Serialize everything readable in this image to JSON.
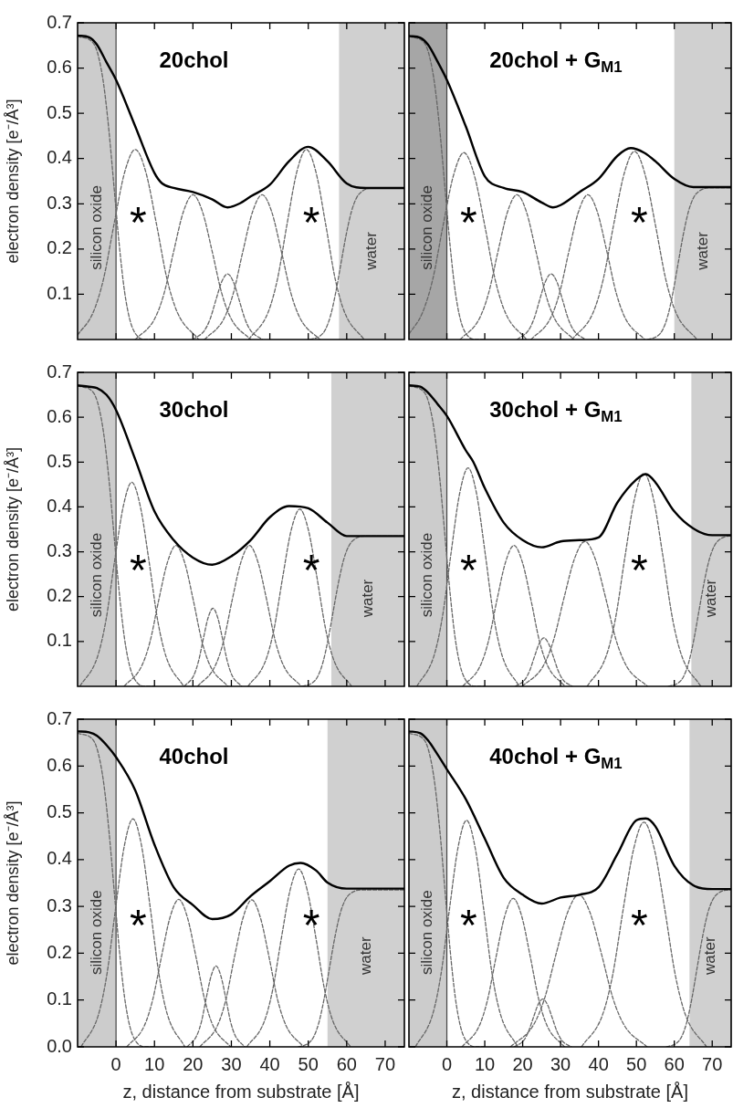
{
  "chart_data": [
    {
      "type": "line",
      "title": "20chol",
      "ylabel": "electron density [e⁻/Å³]",
      "xlim": [
        -10,
        75
      ],
      "ylim": [
        0,
        0.7
      ],
      "xticks": [
        0,
        10,
        20,
        30,
        40,
        50,
        60,
        70
      ],
      "yticks": [
        0.1,
        0.2,
        0.3,
        0.4,
        0.5,
        0.6,
        0.7
      ],
      "tick_labels": "y",
      "bands": [
        {
          "axis": "x",
          "from": -10,
          "to": 0,
          "label": "silicon oxide",
          "color": "#cccccc"
        },
        {
          "axis": "x",
          "from": 58,
          "to": 75,
          "label": "water",
          "color": "#d0d0d0"
        }
      ],
      "ref_lines": [
        {
          "axis": "x",
          "value": 0,
          "color": "#444444"
        }
      ],
      "annotations": [
        "*",
        "*"
      ],
      "series": [
        {
          "color": "#000000",
          "line_style": "solid",
          "x": [
            -10,
            -7,
            -5,
            -2.5,
            0,
            5,
            10,
            12,
            15,
            20,
            25,
            29,
            32,
            35,
            40,
            45,
            50,
            55,
            60,
            65,
            75
          ],
          "values": [
            0.672,
            0.668,
            0.652,
            0.613,
            0.574,
            0.471,
            0.368,
            0.345,
            0.335,
            0.326,
            0.31,
            0.292,
            0.3,
            0.316,
            0.342,
            0.394,
            0.426,
            0.394,
            0.345,
            0.335,
            0.335
          ]
        },
        {
          "color": "#666666",
          "line_style": "dashed",
          "x": [
            -10,
            -5.9,
            -4.55,
            -3.2,
            -1.85,
            -0.5,
            0.85,
            2.2,
            3.55,
            4.9,
            7.6,
            10
          ],
          "values": [
            0.67,
            0.655,
            0.625,
            0.563,
            0.462,
            0.335,
            0.208,
            0.107,
            0.045,
            0.015,
            0,
            0
          ]
        },
        {
          "color": "#666666",
          "line_style": "dashed",
          "x": [
            -10,
            -6,
            -3.25,
            -0.5,
            2.25,
            5,
            7.75,
            10.5,
            13.25,
            16,
            21.5
          ],
          "values": [
            0.01,
            0.059,
            0.134,
            0.256,
            0.37,
            0.42,
            0.37,
            0.256,
            0.134,
            0.059,
            0
          ]
        },
        {
          "color": "#666666",
          "line_style": "dashed",
          "x": [
            5,
            10,
            12.5,
            15,
            17.5,
            20,
            22.5,
            25,
            27.5,
            30,
            35
          ],
          "values": [
            0,
            0.045,
            0.102,
            0.195,
            0.282,
            0.32,
            0.282,
            0.195,
            0.102,
            0.045,
            0
          ]
        },
        {
          "color": "#666666",
          "line_style": "dashed",
          "x": [
            20,
            23,
            24.5,
            26,
            27.5,
            29,
            30.5,
            32,
            33.5,
            35,
            38
          ],
          "values": [
            0,
            0.02,
            0.046,
            0.088,
            0.128,
            0.145,
            0.128,
            0.088,
            0.046,
            0.02,
            0
          ]
        },
        {
          "color": "#666666",
          "line_style": "dashed",
          "x": [
            23,
            28,
            30.5,
            33,
            35.5,
            38,
            40.5,
            43,
            45.5,
            48,
            53
          ],
          "values": [
            0,
            0.045,
            0.102,
            0.195,
            0.282,
            0.32,
            0.282,
            0.195,
            0.102,
            0.045,
            0
          ]
        },
        {
          "color": "#666666",
          "line_style": "dashed",
          "x": [
            34.5,
            39.5,
            42,
            44.5,
            47,
            49.5,
            52,
            54.5,
            57,
            59.5,
            64.5
          ],
          "values": [
            0,
            0.059,
            0.134,
            0.256,
            0.37,
            0.42,
            0.37,
            0.256,
            0.134,
            0.059,
            0
          ]
        },
        {
          "color": "#666666",
          "line_style": "dashed",
          "x": [
            50.4,
            53.1,
            54.45,
            55.8,
            57.15,
            58.5,
            59.85,
            61.2,
            62.55,
            63.9,
            66.6,
            75
          ],
          "values": [
            0,
            0.008,
            0.022,
            0.053,
            0.104,
            0.168,
            0.231,
            0.282,
            0.313,
            0.327,
            0.335,
            0.335
          ]
        }
      ]
    },
    {
      "type": "line",
      "title": "20chol + G$_{M1}$",
      "xlim": [
        -10,
        75
      ],
      "ylim": [
        0,
        0.7
      ],
      "xticks": [
        0,
        10,
        20,
        30,
        40,
        50,
        60,
        70
      ],
      "yticks": [
        0.1,
        0.2,
        0.3,
        0.4,
        0.5,
        0.6,
        0.7
      ],
      "tick_labels": false,
      "bands": [
        {
          "axis": "x",
          "from": -10,
          "to": 0,
          "label": "silicon oxide",
          "color": "#a6a6a6"
        },
        {
          "axis": "x",
          "from": 60,
          "to": 75,
          "label": "water",
          "color": "#d0d0d0"
        }
      ],
      "ref_lines": [
        {
          "axis": "x",
          "value": 0,
          "color": "#444444"
        }
      ],
      "annotations": [
        "*",
        "*"
      ],
      "series": [
        {
          "color": "#000000",
          "line_style": "solid",
          "x": [
            -10,
            -7,
            -5,
            -2.5,
            0,
            5,
            10,
            15,
            20,
            25,
            28,
            30,
            35,
            40,
            45,
            48.5,
            52,
            55,
            60,
            65,
            75
          ],
          "values": [
            0.671,
            0.667,
            0.652,
            0.615,
            0.574,
            0.471,
            0.361,
            0.335,
            0.326,
            0.303,
            0.292,
            0.297,
            0.326,
            0.355,
            0.406,
            0.423,
            0.413,
            0.394,
            0.355,
            0.337,
            0.337
          ]
        },
        {
          "color": "#666666",
          "line_style": "dashed",
          "x": [
            -10,
            -5.9,
            -4.55,
            -3.2,
            -1.85,
            -0.5,
            0.85,
            2.2,
            3.55,
            4.9,
            7.6,
            10
          ],
          "values": [
            0.67,
            0.655,
            0.625,
            0.563,
            0.462,
            0.335,
            0.208,
            0.107,
            0.045,
            0.015,
            0,
            0
          ]
        },
        {
          "color": "#666666",
          "line_style": "dashed",
          "x": [
            -10,
            -6.5,
            -3.75,
            -1,
            1.75,
            4.5,
            7.25,
            10,
            12.75,
            15.5,
            21
          ],
          "values": [
            0.012,
            0.058,
            0.132,
            0.252,
            0.363,
            0.413,
            0.363,
            0.252,
            0.132,
            0.058,
            0
          ]
        },
        {
          "color": "#666666",
          "line_style": "dashed",
          "x": [
            3.5,
            8.5,
            11,
            13.5,
            16,
            18.5,
            21,
            23.5,
            26,
            28.5,
            33.5
          ],
          "values": [
            0,
            0.045,
            0.102,
            0.195,
            0.282,
            0.32,
            0.282,
            0.195,
            0.102,
            0.045,
            0
          ]
        },
        {
          "color": "#666666",
          "line_style": "dashed",
          "x": [
            18.5,
            21.5,
            23,
            24.5,
            26,
            27.5,
            29,
            30.5,
            32,
            33.5,
            36.5
          ],
          "values": [
            0,
            0.02,
            0.046,
            0.088,
            0.128,
            0.145,
            0.128,
            0.088,
            0.046,
            0.02,
            0
          ]
        },
        {
          "color": "#666666",
          "line_style": "dashed",
          "x": [
            22.2,
            27.2,
            29.7,
            32.2,
            34.7,
            37.2,
            39.7,
            42.2,
            44.7,
            47.2,
            52.2
          ],
          "values": [
            0,
            0.045,
            0.102,
            0.195,
            0.282,
            0.32,
            0.282,
            0.195,
            0.102,
            0.045,
            0
          ]
        },
        {
          "color": "#666666",
          "line_style": "dashed",
          "x": [
            33,
            38.5,
            41.25,
            44,
            46.75,
            49.5,
            52.25,
            55,
            57.75,
            60.5,
            66
          ],
          "values": [
            0,
            0.058,
            0.133,
            0.254,
            0.366,
            0.416,
            0.366,
            0.254,
            0.133,
            0.058,
            0
          ]
        },
        {
          "color": "#666666",
          "line_style": "dashed",
          "x": [
            52.9,
            55.6,
            56.95,
            58.3,
            59.65,
            61,
            62.35,
            63.7,
            65.05,
            66.4,
            69.1,
            75
          ],
          "values": [
            0,
            0.008,
            0.022,
            0.053,
            0.104,
            0.168,
            0.231,
            0.282,
            0.313,
            0.327,
            0.335,
            0.335
          ]
        }
      ]
    },
    {
      "type": "line",
      "title": "30chol",
      "ylabel": "electron density [e⁻/Å³]",
      "xlim": [
        -10,
        75
      ],
      "ylim": [
        0,
        0.7
      ],
      "xticks": [
        0,
        10,
        20,
        30,
        40,
        50,
        60,
        70
      ],
      "yticks": [
        0.1,
        0.2,
        0.3,
        0.4,
        0.5,
        0.6,
        0.7
      ],
      "tick_labels": "y",
      "bands": [
        {
          "axis": "x",
          "from": -10,
          "to": 0,
          "label": "silicon oxide",
          "color": "#cccccc"
        },
        {
          "axis": "x",
          "from": 56,
          "to": 75,
          "label": "water",
          "color": "#d0d0d0"
        }
      ],
      "ref_lines": [
        {
          "axis": "x",
          "value": 0,
          "color": "#444444"
        }
      ],
      "annotations": [
        "*",
        "*"
      ],
      "series": [
        {
          "color": "#000000",
          "line_style": "solid",
          "x": [
            -10,
            -7,
            -5,
            -2.5,
            0,
            5,
            10,
            15,
            20,
            25,
            30,
            35,
            40,
            45,
            50,
            55,
            60,
            75
          ],
          "values": [
            0.671,
            0.668,
            0.665,
            0.65,
            0.616,
            0.506,
            0.39,
            0.326,
            0.287,
            0.271,
            0.29,
            0.326,
            0.377,
            0.402,
            0.397,
            0.365,
            0.335,
            0.335
          ]
        },
        {
          "color": "#666666",
          "line_style": "dashed",
          "x": [
            -10,
            -5.9,
            -4.55,
            -3.2,
            -1.85,
            -0.5,
            0.85,
            2.2,
            3.55,
            4.9,
            7.6,
            10
          ],
          "values": [
            0.67,
            0.655,
            0.625,
            0.563,
            0.462,
            0.335,
            0.208,
            0.107,
            0.045,
            0.015,
            0,
            0
          ]
        },
        {
          "color": "#666666",
          "line_style": "dashed",
          "x": [
            -9.4,
            -4.9,
            -2.65,
            -0.4,
            1.85,
            4.1,
            6.35,
            8.6,
            10.85,
            13.1,
            17.6
          ],
          "values": [
            0,
            0.064,
            0.146,
            0.278,
            0.4,
            0.455,
            0.4,
            0.278,
            0.146,
            0.064,
            0
          ]
        },
        {
          "color": "#666666",
          "line_style": "dashed",
          "x": [
            2.1,
            6.6,
            8.85,
            11.1,
            13.35,
            15.6,
            17.85,
            20.1,
            22.35,
            24.6,
            29.1
          ],
          "values": [
            0,
            0.044,
            0.1,
            0.192,
            0.276,
            0.314,
            0.276,
            0.192,
            0.1,
            0.044,
            0
          ]
        },
        {
          "color": "#666666",
          "line_style": "dashed",
          "x": [
            17.7,
            20.2,
            21.45,
            22.7,
            23.95,
            25.2,
            26.45,
            27.7,
            28.95,
            30.2,
            32.7
          ],
          "values": [
            0,
            0.024,
            0.056,
            0.106,
            0.153,
            0.174,
            0.153,
            0.106,
            0.056,
            0.024,
            0
          ]
        },
        {
          "color": "#666666",
          "line_style": "dashed",
          "x": [
            21.2,
            25.7,
            27.95,
            30.2,
            32.45,
            34.7,
            36.95,
            39.2,
            41.45,
            43.7,
            48.2
          ],
          "values": [
            0,
            0.044,
            0.1,
            0.192,
            0.276,
            0.314,
            0.276,
            0.192,
            0.1,
            0.044,
            0
          ]
        },
        {
          "color": "#666666",
          "line_style": "dashed",
          "x": [
            34.3,
            38.8,
            41.05,
            43.3,
            45.55,
            47.8,
            50.05,
            52.3,
            54.55,
            56.8,
            61.3
          ],
          "values": [
            0,
            0.055,
            0.126,
            0.241,
            0.348,
            0.395,
            0.348,
            0.241,
            0.126,
            0.055,
            0
          ]
        },
        {
          "color": "#666666",
          "line_style": "dashed",
          "x": [
            48.4,
            51.1,
            52.45,
            53.8,
            55.15,
            56.5,
            57.85,
            59.2,
            60.55,
            61.9,
            64.6,
            75
          ],
          "values": [
            0,
            0.008,
            0.022,
            0.053,
            0.104,
            0.168,
            0.231,
            0.282,
            0.313,
            0.327,
            0.335,
            0.335
          ]
        }
      ]
    },
    {
      "type": "line",
      "title": "30chol + G$_{M1}$",
      "xlim": [
        -10,
        75
      ],
      "ylim": [
        0,
        0.7
      ],
      "xticks": [
        0,
        10,
        20,
        30,
        40,
        50,
        60,
        70
      ],
      "yticks": [
        0.1,
        0.2,
        0.3,
        0.4,
        0.5,
        0.6,
        0.7
      ],
      "tick_labels": false,
      "bands": [
        {
          "axis": "x",
          "from": -10,
          "to": 0,
          "label": "silicon oxide",
          "color": "#cccccc"
        },
        {
          "axis": "x",
          "from": 64.5,
          "to": 75,
          "label": "water",
          "color": "#d0d0d0"
        }
      ],
      "ref_lines": [
        {
          "axis": "x",
          "value": 0,
          "color": "#444444"
        }
      ],
      "annotations": [
        "*",
        "*"
      ],
      "series": [
        {
          "color": "#000000",
          "line_style": "solid",
          "x": [
            -10,
            -7,
            -5,
            -2.5,
            0,
            5,
            7,
            10,
            15,
            20,
            25,
            30,
            35,
            40,
            45,
            50,
            52.5,
            55,
            60,
            65,
            70,
            75
          ],
          "values": [
            0.671,
            0.668,
            0.655,
            0.63,
            0.603,
            0.526,
            0.5,
            0.442,
            0.365,
            0.326,
            0.31,
            0.323,
            0.326,
            0.332,
            0.41,
            0.461,
            0.473,
            0.455,
            0.39,
            0.352,
            0.337,
            0.337
          ]
        },
        {
          "color": "#666666",
          "line_style": "dashed",
          "x": [
            -10,
            -5.9,
            -4.55,
            -3.2,
            -1.85,
            -0.5,
            0.85,
            2.2,
            3.55,
            4.9,
            7.6,
            10
          ],
          "values": [
            0.67,
            0.655,
            0.625,
            0.563,
            0.462,
            0.335,
            0.208,
            0.107,
            0.045,
            0.015,
            0,
            0
          ]
        },
        {
          "color": "#666666",
          "line_style": "dashed",
          "x": [
            -7.9,
            -3.4,
            -1.15,
            1.1,
            3.35,
            5.6,
            7.85,
            10.1,
            12.35,
            14.6,
            19.1
          ],
          "values": [
            0,
            0.068,
            0.156,
            0.297,
            0.429,
            0.487,
            0.429,
            0.297,
            0.156,
            0.068,
            0
          ]
        },
        {
          "color": "#666666",
          "line_style": "dashed",
          "x": [
            4.2,
            8.7,
            10.95,
            13.2,
            15.45,
            17.7,
            19.95,
            22.2,
            24.45,
            26.7,
            31.2
          ],
          "values": [
            0,
            0.044,
            0.1,
            0.192,
            0.276,
            0.314,
            0.276,
            0.192,
            0.1,
            0.044,
            0
          ]
        },
        {
          "color": "#666666",
          "line_style": "dashed",
          "x": [
            18.1,
            20.6,
            21.85,
            23.1,
            24.35,
            25.6,
            26.85,
            28.1,
            29.35,
            30.6,
            33.1
          ],
          "values": [
            0,
            0.015,
            0.035,
            0.066,
            0.095,
            0.108,
            0.095,
            0.066,
            0.035,
            0.015,
            0
          ]
        },
        {
          "color": "#666666",
          "line_style": "dashed",
          "x": [
            19.9,
            25.4,
            28.15,
            30.9,
            33.65,
            36.4,
            39.15,
            41.9,
            44.65,
            47.4,
            52.9
          ],
          "values": [
            0,
            0.045,
            0.103,
            0.197,
            0.284,
            0.323,
            0.284,
            0.197,
            0.103,
            0.045,
            0
          ]
        },
        {
          "color": "#666666",
          "line_style": "dashed",
          "x": [
            37,
            42,
            44.5,
            47,
            49.5,
            52,
            54.5,
            57,
            59.5,
            62,
            67
          ],
          "values": [
            0,
            0.067,
            0.152,
            0.29,
            0.418,
            0.475,
            0.418,
            0.29,
            0.152,
            0.067,
            0
          ]
        },
        {
          "color": "#666666",
          "line_style": "dashed",
          "x": [
            58.4,
            61.1,
            62.45,
            63.8,
            65.15,
            66.5,
            67.85,
            69.2,
            70.55,
            71.9,
            74.6,
            75
          ],
          "values": [
            0,
            0.008,
            0.022,
            0.053,
            0.104,
            0.168,
            0.231,
            0.282,
            0.313,
            0.327,
            0.335,
            0.335
          ]
        }
      ]
    },
    {
      "type": "line",
      "title": "40chol",
      "xlabel": "z, distance from substrate [Å]",
      "ylabel": "electron density [e⁻/Å³]",
      "xlim": [
        -10,
        75
      ],
      "ylim": [
        0,
        0.7
      ],
      "xticks": [
        0,
        10,
        20,
        30,
        40,
        50,
        60,
        70
      ],
      "yticks": [
        {
          "value": 0,
          "label": "0.0"
        },
        0.1,
        0.2,
        0.3,
        0.4,
        0.5,
        0.6,
        0.7
      ],
      "bands": [
        {
          "axis": "x",
          "from": -10,
          "to": 0,
          "label": "silicon oxide",
          "color": "#cccccc"
        },
        {
          "axis": "x",
          "from": 55,
          "to": 75,
          "label": "water",
          "color": "#d0d0d0"
        }
      ],
      "ref_lines": [
        {
          "axis": "x",
          "value": 0,
          "color": "#444444"
        }
      ],
      "annotations": [
        "*",
        "*"
      ],
      "series": [
        {
          "color": "#000000",
          "line_style": "solid",
          "x": [
            -10,
            -7,
            -5,
            -2.5,
            0,
            5,
            10,
            15,
            20,
            25,
            30,
            35,
            40,
            45,
            48,
            52,
            55,
            60,
            75
          ],
          "values": [
            0.674,
            0.672,
            0.665,
            0.645,
            0.619,
            0.548,
            0.432,
            0.341,
            0.303,
            0.273,
            0.283,
            0.322,
            0.354,
            0.387,
            0.393,
            0.377,
            0.351,
            0.338,
            0.338
          ]
        },
        {
          "color": "#666666",
          "line_style": "dashed",
          "x": [
            -10,
            -5.9,
            -4.55,
            -3.2,
            -1.85,
            -0.5,
            0.85,
            2.2,
            3.55,
            4.9,
            7.6,
            10
          ],
          "values": [
            0.67,
            0.655,
            0.625,
            0.563,
            0.462,
            0.335,
            0.208,
            0.107,
            0.045,
            0.015,
            0,
            0
          ]
        },
        {
          "color": "#666666",
          "line_style": "dashed",
          "x": [
            -9.1,
            -4.6,
            -2.35,
            -0.1,
            2.15,
            4.4,
            6.65,
            8.9,
            11.15,
            13.4,
            17.9
          ],
          "values": [
            0,
            0.068,
            0.156,
            0.297,
            0.429,
            0.487,
            0.429,
            0.297,
            0.156,
            0.068,
            0
          ]
        },
        {
          "color": "#666666",
          "line_style": "dashed",
          "x": [
            2.8,
            7.3,
            9.55,
            11.8,
            14.05,
            16.3,
            18.55,
            20.8,
            23.05,
            25.3,
            29.8
          ],
          "values": [
            0,
            0.044,
            0.101,
            0.192,
            0.277,
            0.315,
            0.277,
            0.192,
            0.101,
            0.044,
            0
          ]
        },
        {
          "color": "#666666",
          "line_style": "dashed",
          "x": [
            18.5,
            21,
            22.25,
            23.5,
            24.75,
            26,
            27.25,
            28.5,
            29.75,
            31,
            33.5
          ],
          "values": [
            0,
            0.024,
            0.055,
            0.106,
            0.152,
            0.173,
            0.152,
            0.106,
            0.055,
            0.024,
            0
          ]
        },
        {
          "color": "#666666",
          "line_style": "dashed",
          "x": [
            21.8,
            26.3,
            28.55,
            30.8,
            33.05,
            35.3,
            37.55,
            39.8,
            42.05,
            44.3,
            48.8
          ],
          "values": [
            0,
            0.044,
            0.1,
            0.192,
            0.276,
            0.314,
            0.276,
            0.192,
            0.1,
            0.044,
            0
          ]
        },
        {
          "color": "#666666",
          "line_style": "dashed",
          "x": [
            34,
            38.5,
            40.75,
            43,
            45.25,
            47.5,
            49.75,
            52,
            54.25,
            56.5,
            61
          ],
          "values": [
            0,
            0.053,
            0.122,
            0.232,
            0.334,
            0.38,
            0.334,
            0.232,
            0.122,
            0.053,
            0
          ]
        },
        {
          "color": "#666666",
          "line_style": "dashed",
          "x": [
            47.4,
            50.1,
            51.45,
            52.8,
            54.15,
            55.5,
            56.85,
            58.2,
            59.55,
            60.9,
            63.6,
            75
          ],
          "values": [
            0,
            0.008,
            0.022,
            0.053,
            0.104,
            0.168,
            0.231,
            0.282,
            0.313,
            0.327,
            0.335,
            0.335
          ]
        }
      ]
    },
    {
      "type": "line",
      "title": "40chol + G$_{M1}$",
      "xlabel": "z, distance from substrate [Å]",
      "xlim": [
        -10,
        75
      ],
      "ylim": [
        0,
        0.7
      ],
      "xticks": [
        0,
        10,
        20,
        30,
        40,
        50,
        60,
        70
      ],
      "yticks": [
        0,
        0.1,
        0.2,
        0.3,
        0.4,
        0.5,
        0.6,
        0.7
      ],
      "tick_labels": "x",
      "bands": [
        {
          "axis": "x",
          "from": -10,
          "to": 0,
          "label": "silicon oxide",
          "color": "#cccccc"
        },
        {
          "axis": "x",
          "from": 64,
          "to": 75,
          "label": "water",
          "color": "#d0d0d0"
        }
      ],
      "ref_lines": [
        {
          "axis": "x",
          "value": 0,
          "color": "#444444"
        }
      ],
      "annotations": [
        "*",
        "*"
      ],
      "series": [
        {
          "color": "#000000",
          "line_style": "solid",
          "x": [
            -10,
            -7,
            -5,
            -2.5,
            0,
            5,
            10,
            15,
            20,
            25,
            30,
            35,
            40,
            45,
            50,
            52.5,
            55,
            60,
            65,
            70,
            75
          ],
          "values": [
            0.674,
            0.67,
            0.655,
            0.625,
            0.593,
            0.529,
            0.445,
            0.361,
            0.325,
            0.306,
            0.319,
            0.325,
            0.341,
            0.412,
            0.484,
            0.488,
            0.471,
            0.387,
            0.345,
            0.337,
            0.337
          ]
        },
        {
          "color": "#666666",
          "line_style": "dashed",
          "x": [
            -10,
            -5.9,
            -4.55,
            -3.2,
            -1.85,
            -0.5,
            0.85,
            2.2,
            3.55,
            4.9,
            7.6,
            10
          ],
          "values": [
            0.67,
            0.655,
            0.625,
            0.563,
            0.462,
            0.335,
            0.208,
            0.107,
            0.045,
            0.015,
            0,
            0
          ]
        },
        {
          "color": "#666666",
          "line_style": "dashed",
          "x": [
            -8.3,
            -3.8,
            -1.55,
            0.7,
            2.95,
            5.2,
            7.45,
            9.7,
            11.95,
            14.2,
            18.7
          ],
          "values": [
            0,
            0.068,
            0.155,
            0.295,
            0.426,
            0.484,
            0.426,
            0.295,
            0.155,
            0.068,
            0
          ]
        },
        {
          "color": "#666666",
          "line_style": "dashed",
          "x": [
            4,
            8.5,
            10.75,
            13,
            15.25,
            17.5,
            19.75,
            22,
            24.25,
            26.5,
            31
          ],
          "values": [
            0,
            0.044,
            0.101,
            0.193,
            0.279,
            0.317,
            0.279,
            0.193,
            0.101,
            0.044,
            0
          ]
        },
        {
          "color": "#666666",
          "line_style": "dashed",
          "x": [
            17.8,
            20.3,
            21.55,
            22.8,
            24.05,
            25.3,
            26.55,
            27.8,
            29.05,
            30.3,
            32.8
          ],
          "values": [
            0,
            0.014,
            0.033,
            0.062,
            0.09,
            0.102,
            0.09,
            0.062,
            0.033,
            0.014,
            0
          ]
        },
        {
          "color": "#666666",
          "line_style": "dashed",
          "x": [
            16.8,
            22.8,
            25.8,
            28.8,
            31.8,
            34.8,
            37.8,
            40.8,
            43.8,
            46.8,
            52.8
          ],
          "values": [
            0,
            0.046,
            0.104,
            0.198,
            0.286,
            0.325,
            0.286,
            0.198,
            0.104,
            0.046,
            0
          ]
        },
        {
          "color": "#666666",
          "line_style": "dashed",
          "x": [
            35.5,
            41,
            43.75,
            46.5,
            49.25,
            52,
            54.75,
            57.5,
            60.25,
            63,
            68.5
          ],
          "values": [
            0,
            0.067,
            0.154,
            0.293,
            0.422,
            0.48,
            0.422,
            0.293,
            0.154,
            0.067,
            0
          ]
        },
        {
          "color": "#666666",
          "line_style": "dashed",
          "x": [
            57.9,
            60.6,
            61.95,
            63.3,
            64.65,
            66,
            67.35,
            68.7,
            70.05,
            71.4,
            74.1,
            75
          ],
          "values": [
            0,
            0.008,
            0.022,
            0.053,
            0.104,
            0.168,
            0.231,
            0.282,
            0.313,
            0.327,
            0.335,
            0.335
          ]
        }
      ]
    }
  ]
}
